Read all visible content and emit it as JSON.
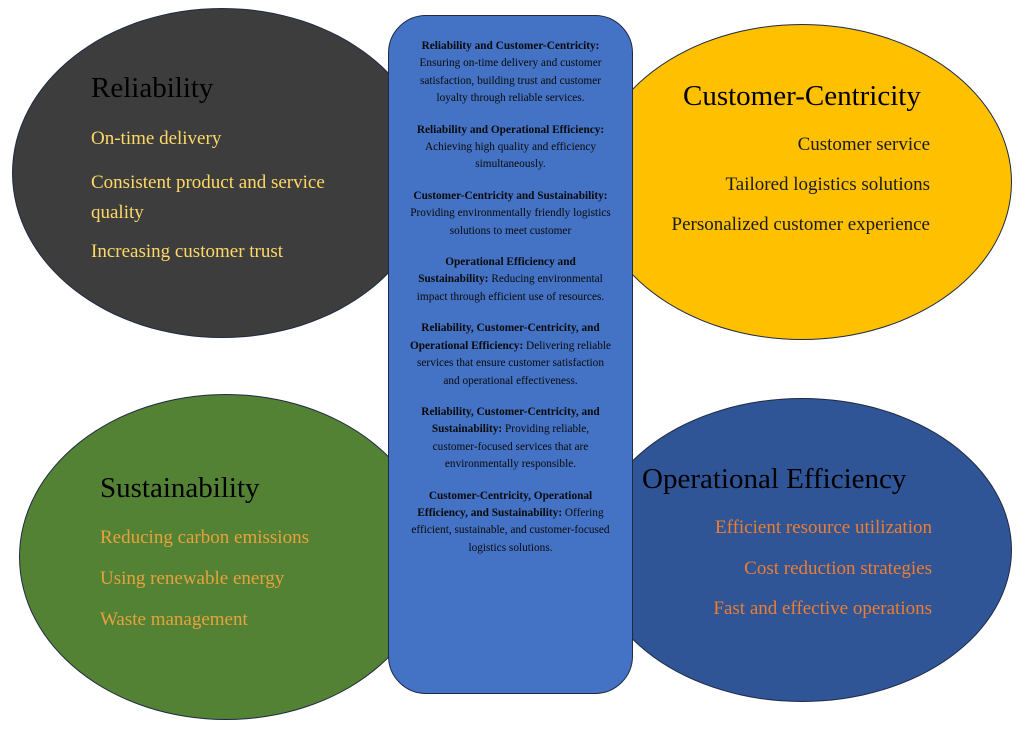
{
  "reliability": {
    "title": "Reliability",
    "items": [
      "On-time delivery",
      " Consistent product and service quality",
      "Increasing customer trust"
    ],
    "fill": "#3d3d3d",
    "text_color": "#ffd966"
  },
  "customer_centricity": {
    "title": "Customer-Centricity",
    "items": [
      "Customer service",
      "Tailored logistics solutions",
      "Personalized customer experience"
    ],
    "fill": "#ffc000",
    "text_color": "#1a1a1a"
  },
  "sustainability": {
    "title": "Sustainability",
    "items": [
      "Reducing carbon emissions",
      "Using renewable energy",
      "Waste management"
    ],
    "fill": "#548235",
    "text_color": "#e6a23c"
  },
  "operational_efficiency": {
    "title": "Operational Efficiency",
    "items": [
      "Efficient resource utilization",
      "Cost reduction strategies",
      "Fast and effective operations"
    ],
    "fill": "#2f5597",
    "text_color": "#ed7d31"
  },
  "center": {
    "fill": "#4472c4",
    "blocks": [
      {
        "heading": "Reliability and Customer-Centricity:",
        "text": " Ensuring on-time delivery and customer satisfaction, building trust and customer loyalty through reliable services."
      },
      {
        "heading": "Reliability and Operational Efficiency:",
        "text": " Achieving high quality and efficiency simultaneously."
      },
      {
        "heading": "Customer-Centricity and Sustainability:",
        "text": " Providing environmentally friendly logistics solutions to meet customer"
      },
      {
        "heading": "Operational Efficiency and Sustainability:",
        "text": " Reducing environmental impact through efficient use of resources."
      },
      {
        "heading": "Reliability, Customer-Centricity, and Operational Efficiency:",
        "text": " Delivering reliable services that ensure customer satisfaction and operational effectiveness."
      },
      {
        "heading": "Reliability, Customer-Centricity, and Sustainability:",
        "text": " Providing reliable, customer-focused services that are environmentally responsible."
      },
      {
        "heading": "Customer-Centricity, Operational Efficiency, and Sustainability:",
        "text": " Offering efficient, sustainable, and customer-focused logistics solutions."
      }
    ]
  }
}
